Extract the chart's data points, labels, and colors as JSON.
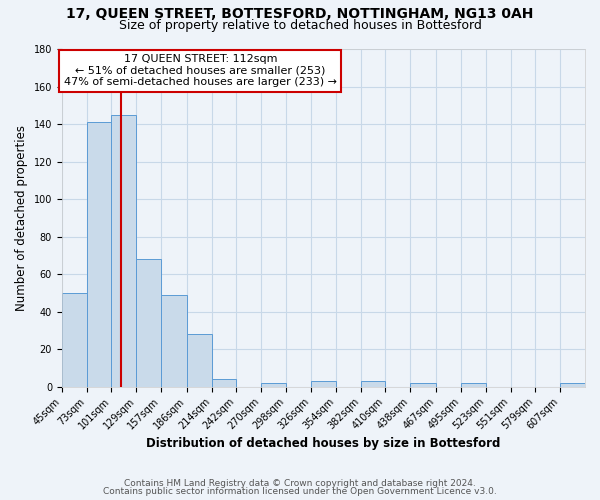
{
  "title1": "17, QUEEN STREET, BOTTESFORD, NOTTINGHAM, NG13 0AH",
  "title2": "Size of property relative to detached houses in Bottesford",
  "xlabel": "Distribution of detached houses by size in Bottesford",
  "ylabel": "Number of detached properties",
  "footer1": "Contains HM Land Registry data © Crown copyright and database right 2024.",
  "footer2": "Contains public sector information licensed under the Open Government Licence v3.0.",
  "bin_labels": [
    "45sqm",
    "73sqm",
    "101sqm",
    "129sqm",
    "157sqm",
    "186sqm",
    "214sqm",
    "242sqm",
    "270sqm",
    "298sqm",
    "326sqm",
    "354sqm",
    "382sqm",
    "410sqm",
    "438sqm",
    "467sqm",
    "495sqm",
    "523sqm",
    "551sqm",
    "579sqm",
    "607sqm"
  ],
  "bar_values": [
    50,
    141,
    145,
    68,
    49,
    28,
    4,
    0,
    2,
    0,
    3,
    0,
    3,
    0,
    2,
    0,
    2,
    0,
    0,
    0,
    2
  ],
  "bar_color": "#c9daea",
  "bar_edge_color": "#5b9bd5",
  "vline_x": 112,
  "vline_color": "#cc0000",
  "annotation_title": "17 QUEEN STREET: 112sqm",
  "annotation_line1": "← 51% of detached houses are smaller (253)",
  "annotation_line2": "47% of semi-detached houses are larger (233) →",
  "annotation_box_color": "#ffffff",
  "annotation_box_edge": "#cc0000",
  "ylim": [
    0,
    180
  ],
  "yticks": [
    0,
    20,
    40,
    60,
    80,
    100,
    120,
    140,
    160,
    180
  ],
  "bin_edges": [
    45,
    73,
    101,
    129,
    157,
    186,
    214,
    242,
    270,
    298,
    326,
    354,
    382,
    410,
    438,
    467,
    495,
    523,
    551,
    579,
    607,
    635
  ],
  "bg_color": "#eef3f9",
  "grid_color": "#c8d8e8",
  "title1_fontsize": 10,
  "title2_fontsize": 9,
  "annotation_fontsize": 8,
  "axis_label_fontsize": 8.5,
  "tick_fontsize": 7,
  "footer_fontsize": 6.5
}
